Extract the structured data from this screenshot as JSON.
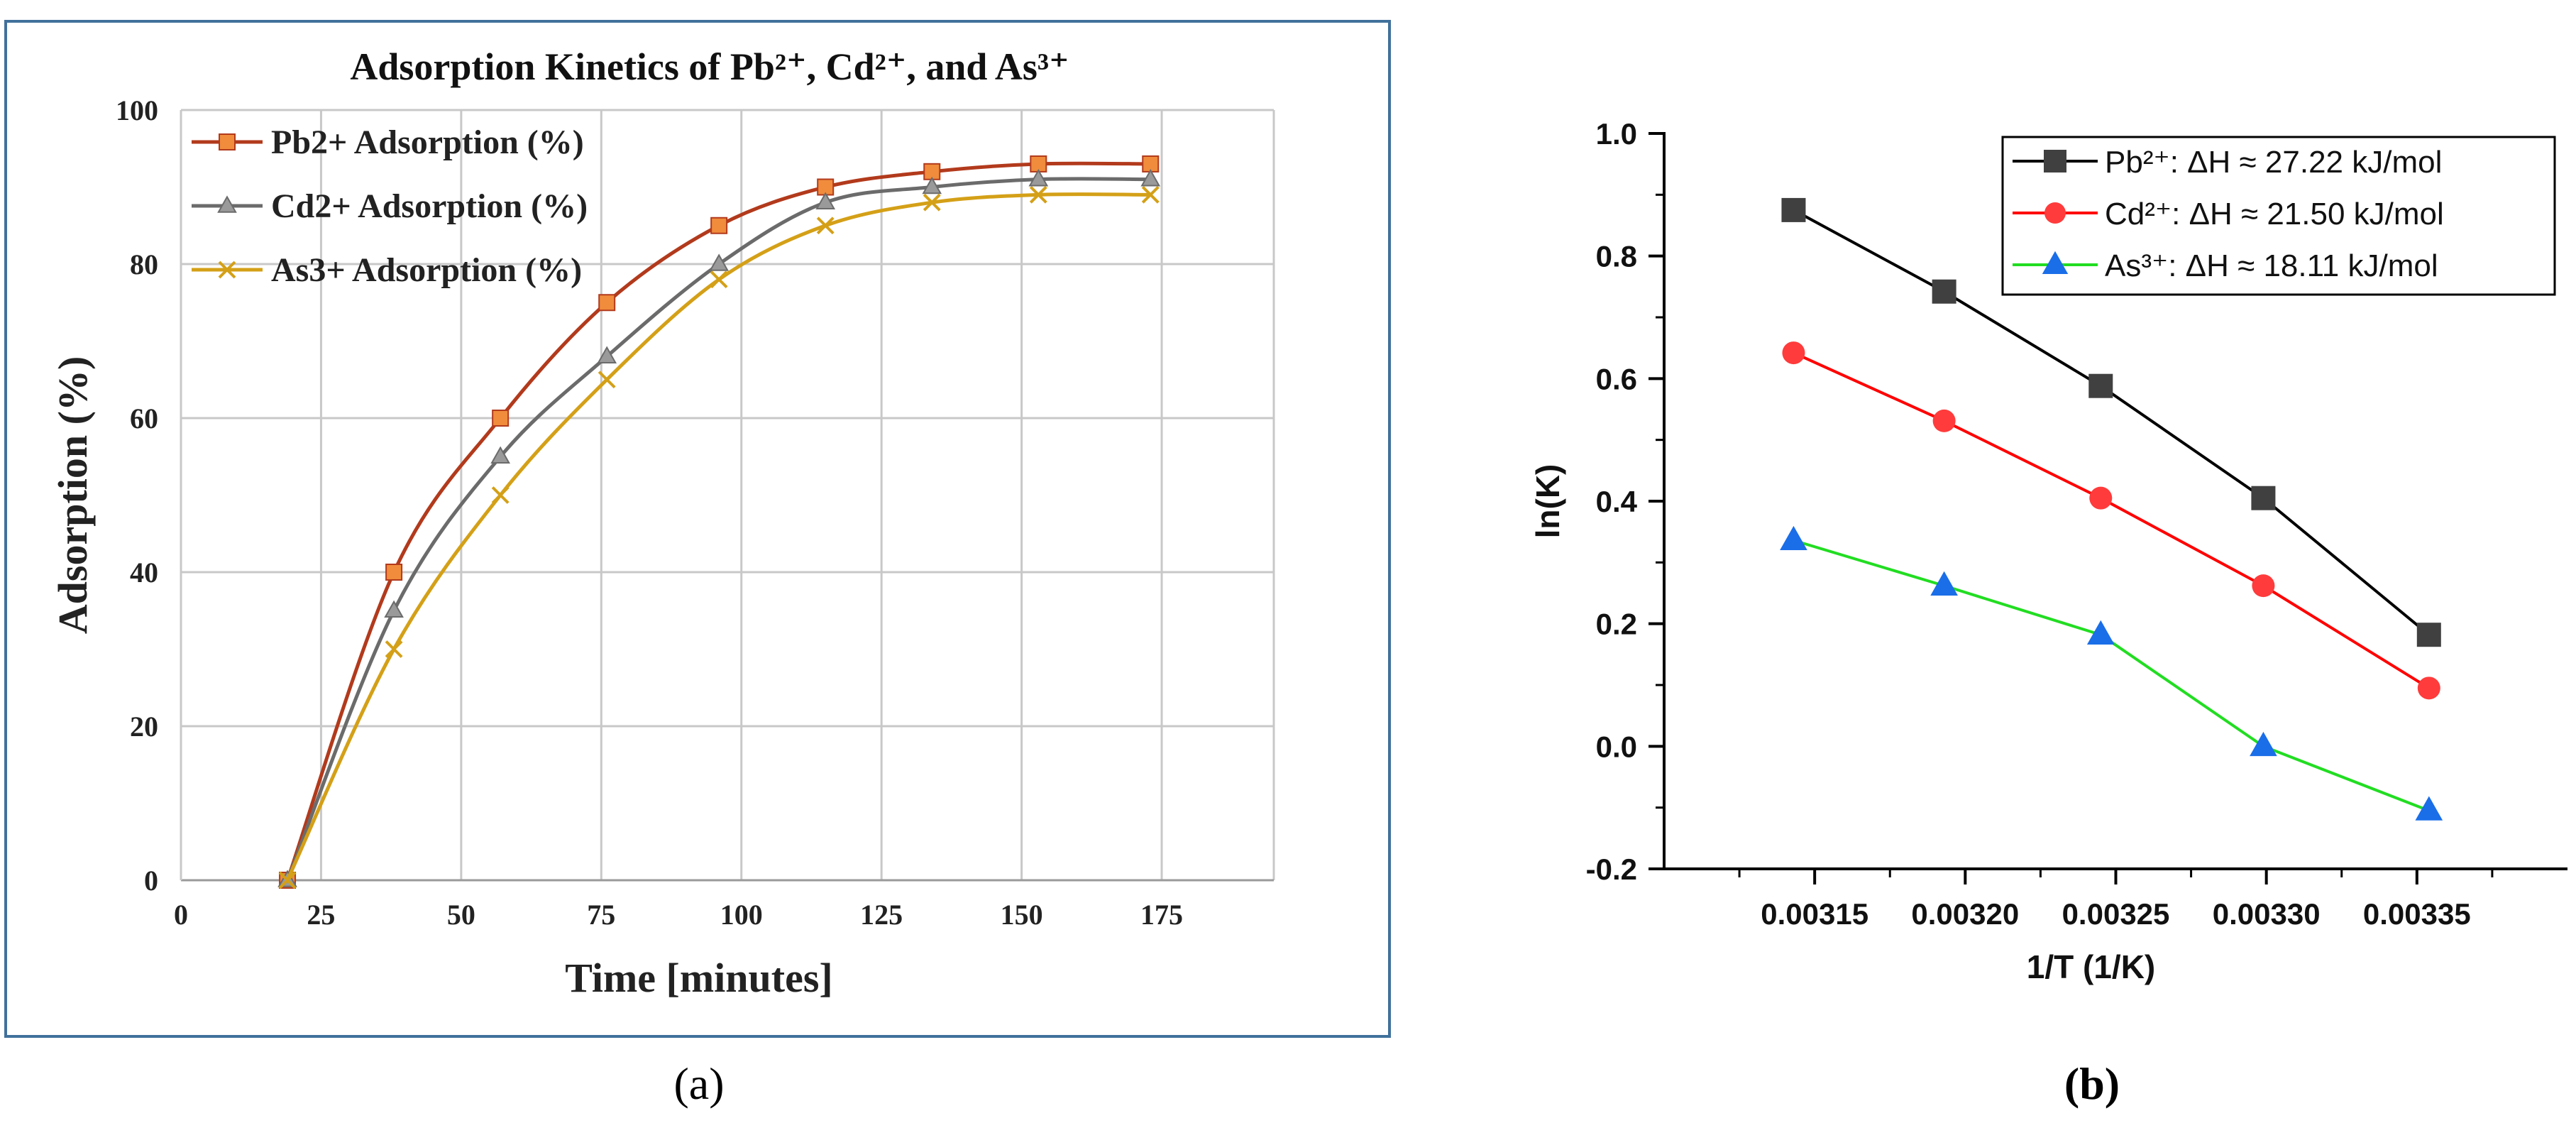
{
  "chart_data": [
    {
      "type": "line",
      "panel_label": "(a)",
      "title": "Adsorption Kinetics of Pb²⁺, Cd²⁺, and As³⁺",
      "xlabel": "Time [minutes]",
      "ylabel": "Adsorption (%)",
      "xlim": [
        0,
        195
      ],
      "ylim": [
        0,
        100
      ],
      "xticks": [
        0,
        25,
        50,
        75,
        100,
        125,
        150,
        175
      ],
      "yticks": [
        0,
        20,
        40,
        60,
        80,
        100
      ],
      "grid": true,
      "legend_position": "top-left",
      "x": [
        19,
        38,
        57,
        76,
        96,
        115,
        134,
        153,
        173
      ],
      "series": [
        {
          "name": "Pb2+ Adsorption (%)",
          "color": "#b23a1c",
          "marker_color": "#f08c3c",
          "marker": "square",
          "values": [
            0,
            40,
            60,
            75,
            85,
            90,
            92,
            93,
            93
          ]
        },
        {
          "name": "Cd2+ Adsorption (%)",
          "color": "#6b6b6b",
          "marker_color": "#9a9a9a",
          "marker": "triangle",
          "values": [
            0,
            35,
            55,
            68,
            80,
            88,
            90,
            91,
            91
          ]
        },
        {
          "name": "As3+ Adsorption (%)",
          "color": "#d4a017",
          "marker_color": "#d4a017",
          "marker": "x",
          "values": [
            0,
            30,
            50,
            65,
            78,
            85,
            88,
            89,
            89
          ]
        }
      ]
    },
    {
      "type": "line",
      "panel_label": "(b)",
      "xlabel": "1/T (1/K)",
      "ylabel": "ln(K)",
      "xlim": [
        0.0031,
        0.0034
      ],
      "ylim": [
        -0.2,
        1.0
      ],
      "xticks": [
        "0.00315",
        "0.00320",
        "0.00325",
        "0.00330",
        "0.00335"
      ],
      "yticks": [
        "-0.2",
        "0.0",
        "0.2",
        "0.4",
        "0.6",
        "0.8",
        "1.0"
      ],
      "grid": false,
      "legend_position": "top-right",
      "x": [
        0.003143,
        0.003193,
        0.003245,
        0.003299,
        0.003354
      ],
      "series": [
        {
          "name": "Pb²⁺: ΔH ≈ 27.22 kJ/mol",
          "color": "#000000",
          "marker_color": "#404040",
          "marker": "square",
          "values": [
            0.875,
            0.742,
            0.588,
            0.405,
            0.182
          ]
        },
        {
          "name": "Cd²⁺: ΔH ≈ 21.50 kJ/mol",
          "color": "#ff0000",
          "marker_color": "#ff3b3b",
          "marker": "circle",
          "values": [
            0.642,
            0.531,
            0.405,
            0.262,
            0.095
          ]
        },
        {
          "name": "As³⁺: ΔH ≈ 18.11 kJ/mol",
          "color": "#22dd22",
          "marker_color": "#1a6ee8",
          "marker": "triangle",
          "values": [
            0.336,
            0.262,
            0.182,
            0.0,
            -0.105
          ]
        }
      ]
    }
  ]
}
